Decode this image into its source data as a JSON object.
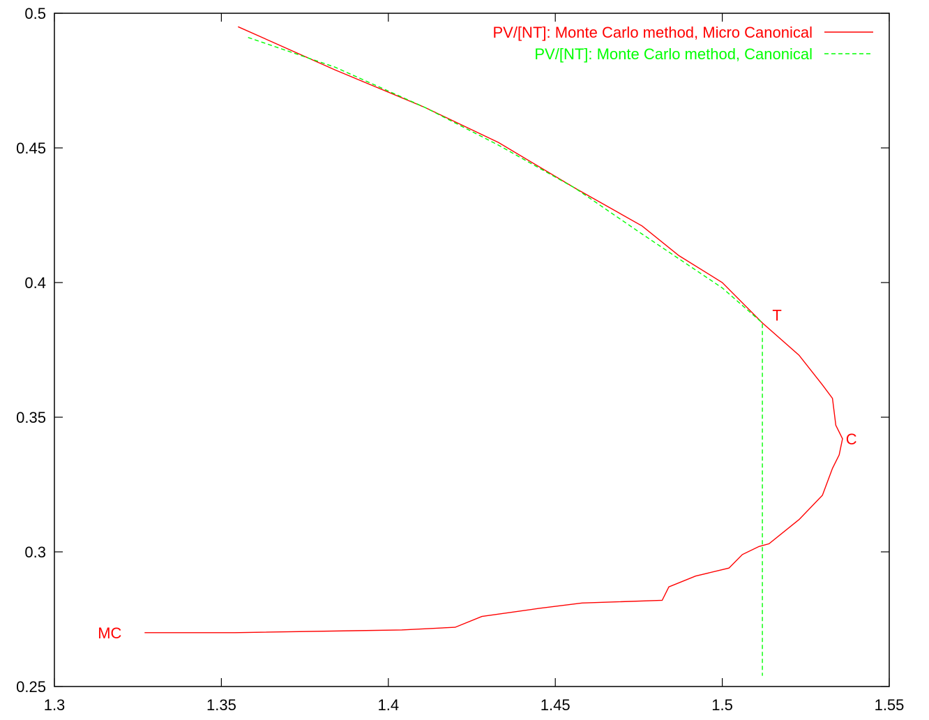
{
  "chart_data": {
    "type": "line",
    "title": "",
    "xlabel": "",
    "ylabel": "",
    "xlim": [
      1.3,
      1.55
    ],
    "ylim": [
      0.25,
      0.5
    ],
    "grid": false,
    "legend_position": "top-right",
    "x_ticks": [
      "1.3",
      "1.35",
      "1.4",
      "1.45",
      "1.5",
      "1.55"
    ],
    "y_ticks": [
      "0.25",
      "0.3",
      "0.35",
      "0.4",
      "0.45",
      "0.5"
    ],
    "series": [
      {
        "name": "PV/[NT]: Monte Carlo method, Micro Canonical",
        "color": "#ff0000",
        "dash": "solid",
        "points": [
          [
            1.355,
            0.495
          ],
          [
            1.384,
            0.479
          ],
          [
            1.411,
            0.465
          ],
          [
            1.433,
            0.452
          ],
          [
            1.456,
            0.435
          ],
          [
            1.476,
            0.421
          ],
          [
            1.487,
            0.41
          ],
          [
            1.5,
            0.4
          ],
          [
            1.512,
            0.385
          ],
          [
            1.523,
            0.373
          ],
          [
            1.53,
            0.362
          ],
          [
            1.533,
            0.357
          ],
          [
            1.534,
            0.347
          ],
          [
            1.536,
            0.342
          ],
          [
            1.535,
            0.336
          ],
          [
            1.533,
            0.331
          ],
          [
            1.53,
            0.321
          ],
          [
            1.523,
            0.312
          ],
          [
            1.514,
            0.303
          ],
          [
            1.511,
            0.302
          ],
          [
            1.506,
            0.299
          ],
          [
            1.502,
            0.294
          ],
          [
            1.492,
            0.291
          ],
          [
            1.484,
            0.287
          ],
          [
            1.482,
            0.282
          ],
          [
            1.458,
            0.281
          ],
          [
            1.445,
            0.279
          ],
          [
            1.428,
            0.276
          ],
          [
            1.42,
            0.272
          ],
          [
            1.404,
            0.271
          ],
          [
            1.354,
            0.27
          ],
          [
            1.327,
            0.27
          ]
        ]
      },
      {
        "name": "PV/[NT]: Monte Carlo method, Canonical",
        "color": "#00ff00",
        "dash": "dashed",
        "points": [
          [
            1.358,
            0.491
          ],
          [
            1.384,
            0.48
          ],
          [
            1.411,
            0.465
          ],
          [
            1.433,
            0.451
          ],
          [
            1.456,
            0.435
          ],
          [
            1.476,
            0.418
          ],
          [
            1.5,
            0.398
          ],
          [
            1.512,
            0.385
          ],
          [
            1.512,
            0.254
          ]
        ]
      }
    ],
    "annotations": [
      {
        "text": "T",
        "x": 1.515,
        "y": 0.388
      },
      {
        "text": "C",
        "x": 1.537,
        "y": 0.342
      },
      {
        "text": "MC",
        "x": 1.313,
        "y": 0.27
      }
    ]
  }
}
